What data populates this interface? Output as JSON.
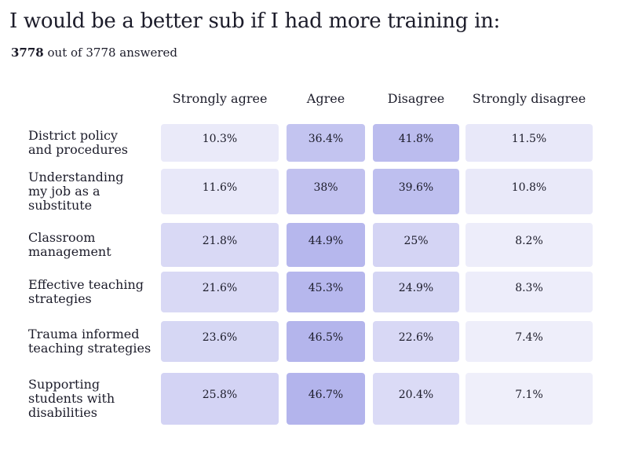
{
  "header": {
    "title": "I would be a better sub if I had more training in:",
    "answered_count": "3778",
    "answered_suffix": "out of 3778 answered"
  },
  "colors": {
    "cell_base": "#f2f2fb",
    "cell_max": "#b3b4ec"
  },
  "chart_data": {
    "type": "table",
    "title": "I would be a better sub if I had more training in:",
    "columns": [
      "Strongly agree",
      "Agree",
      "Disagree",
      "Strongly disagree"
    ],
    "rows": [
      {
        "label": [
          "District policy",
          "and procedures"
        ],
        "values": [
          10.3,
          36.4,
          41.8,
          11.5
        ],
        "display": [
          "10.3%",
          "36.4%",
          "41.8%",
          "11.5%"
        ]
      },
      {
        "label": [
          "Understanding",
          "my job as a",
          "substitute"
        ],
        "values": [
          11.6,
          38,
          39.6,
          10.8
        ],
        "display": [
          "11.6%",
          "38%",
          "39.6%",
          "10.8%"
        ]
      },
      {
        "label": [
          "Classroom",
          "management"
        ],
        "values": [
          21.8,
          44.9,
          25,
          8.2
        ],
        "display": [
          "21.8%",
          "44.9%",
          "25%",
          "8.2%"
        ]
      },
      {
        "label": [
          "Effective teaching",
          "strategies"
        ],
        "values": [
          21.6,
          45.3,
          24.9,
          8.3
        ],
        "display": [
          "21.6%",
          "45.3%",
          "24.9%",
          "8.3%"
        ]
      },
      {
        "label": [
          "Trauma informed",
          "teaching strategies"
        ],
        "values": [
          23.6,
          46.5,
          22.6,
          7.4
        ],
        "display": [
          "23.6%",
          "46.5%",
          "22.6%",
          "7.4%"
        ]
      },
      {
        "label": [
          "Supporting",
          "students with",
          "disabilities"
        ],
        "values": [
          25.8,
          46.7,
          20.4,
          7.1
        ],
        "display": [
          "25.8%",
          "46.7%",
          "20.4%",
          "7.1%"
        ]
      }
    ]
  }
}
